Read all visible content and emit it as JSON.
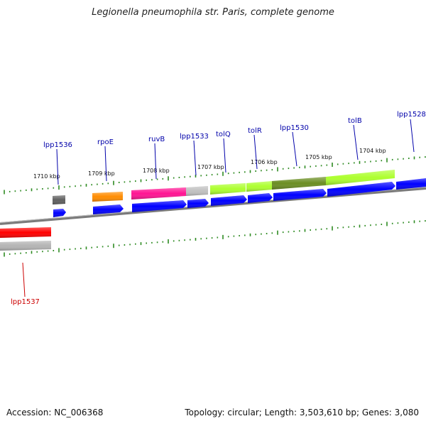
{
  "title": "Legionella pneumophila str. Paris, complete genome",
  "footer": {
    "accession": "Accession: NC_006368",
    "summary": "Topology: circular; Length: 3,503,610 bp; Genes: 3,080"
  },
  "colors": {
    "backbone": "#808080",
    "tick": "#2e8b22",
    "label_forward": "#0000aa",
    "label_reverse": "#cc0000"
  },
  "scale_labels": [
    "1710 kbp",
    "1709 kbp",
    "1708 kbp",
    "1707 kbp",
    "1706 kbp",
    "1705 kbp",
    "1704 kbp"
  ],
  "gene_labels": [
    {
      "text": "lpp1536",
      "strand": "forward"
    },
    {
      "text": "rpoE",
      "strand": "forward"
    },
    {
      "text": "ruvB",
      "strand": "forward"
    },
    {
      "text": "lpp1533",
      "strand": "forward"
    },
    {
      "text": "tolQ",
      "strand": "forward"
    },
    {
      "text": "tolR",
      "strand": "forward"
    },
    {
      "text": "lpp1530",
      "strand": "forward"
    },
    {
      "text": "tolB",
      "strand": "forward"
    },
    {
      "text": "lpp1528",
      "strand": "forward"
    },
    {
      "text": "lpp1537",
      "strand": "reverse"
    }
  ],
  "feature_colors": {
    "dark_gray": "#606060",
    "orange": "#ff8c00",
    "pink": "#ff1493",
    "light_gray": "#c0c0c0",
    "lime": "#adff2f",
    "olive": "#6b8e23",
    "red": "#ff0000",
    "blue": "#0000ff"
  }
}
